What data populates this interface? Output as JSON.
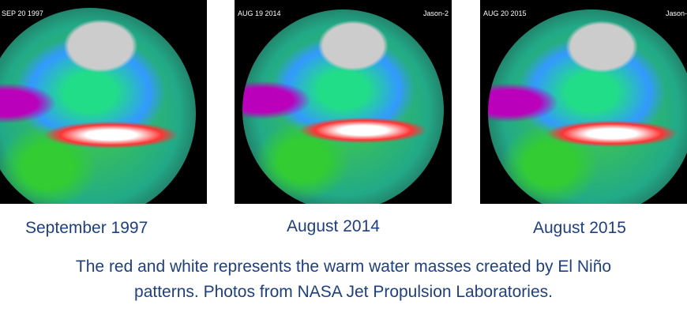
{
  "panels": [
    {
      "stamp": "SEP 20 1997",
      "caption": "September 1997"
    },
    {
      "stamp": "AUG 19 2014",
      "stamp_right": "Jason-2",
      "caption": "August 2014"
    },
    {
      "stamp": "AUG 20 2015",
      "stamp_right": "Jason-",
      "caption": "August 2015"
    }
  ],
  "description_line1": "The red and white represents the warm water masses created by El Niño",
  "description_line2": "patterns.  Photos from NASA Jet Propulsion Laboratories."
}
